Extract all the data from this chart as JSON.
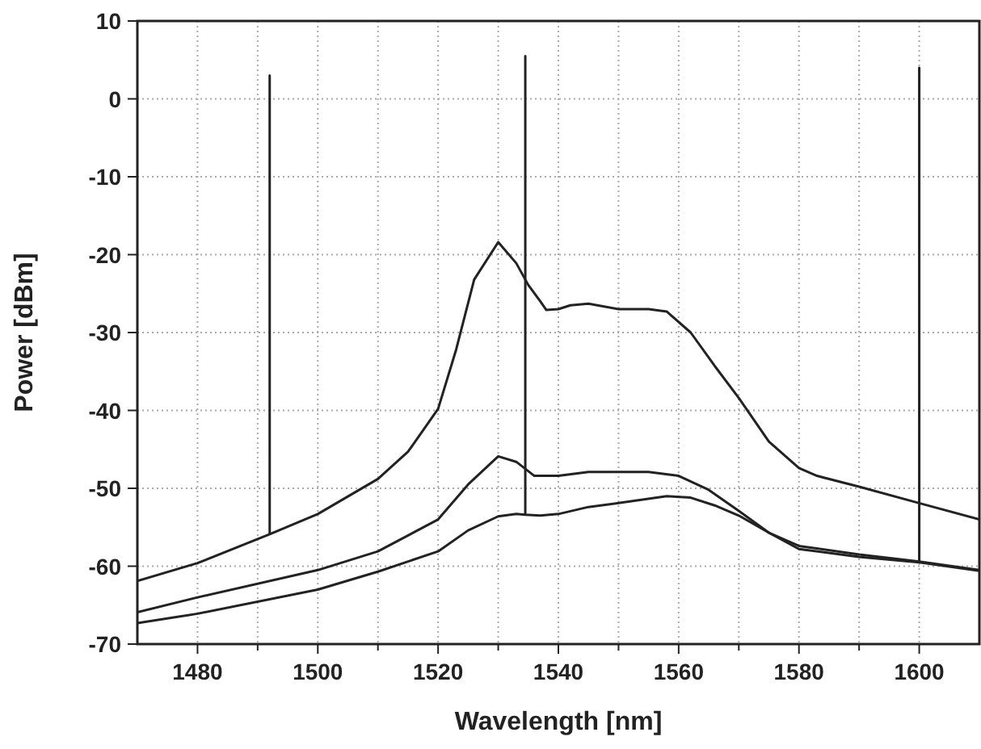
{
  "chart_data": {
    "type": "line",
    "xlabel": "Wavelength [nm]",
    "ylabel": "Power [dBm]",
    "xlim": [
      1470,
      1610
    ],
    "ylim": [
      -70,
      10
    ],
    "xticks": [
      1480,
      {
        "value": 1490,
        "label": null
      },
      1500,
      {
        "value": 1510,
        "label": null
      },
      1520,
      {
        "value": 1530,
        "label": null
      },
      1540,
      {
        "value": 1550,
        "label": null
      },
      1560,
      {
        "value": 1570,
        "label": null
      },
      1580,
      {
        "value": 1590,
        "label": null
      },
      1600
    ],
    "yticks": [
      -70,
      -60,
      -50,
      -40,
      -30,
      -20,
      -10,
      0,
      10
    ],
    "grid": true,
    "marker": "none",
    "line_style": "solid",
    "series": [
      {
        "color": "#222222",
        "x": [
          1470,
          1480,
          1492,
          1492,
          1492,
          1500,
          1510,
          1515,
          1520,
          1523,
          1526,
          1530,
          1533,
          1535,
          1537,
          1538,
          1540,
          1542,
          1545,
          1550,
          1555,
          1558,
          1562,
          1566,
          1570,
          1575,
          1580,
          1583,
          1590,
          1600,
          1610
        ],
        "values": [
          -61.9,
          -59.6,
          -55.9,
          3,
          -55.9,
          -53.3,
          -48.8,
          -45.3,
          -39.8,
          -32.2,
          -23.2,
          -18.4,
          -21.1,
          -23.9,
          -26,
          -27.1,
          -27,
          -26.5,
          -26.3,
          -27,
          -27,
          -27.3,
          -30,
          -34.3,
          -38.4,
          -44,
          -47.4,
          -48.4,
          -49.8,
          -51.9,
          -54
        ]
      },
      {
        "color": "#222222",
        "x": [
          1470,
          1480,
          1500,
          1510,
          1520,
          1525,
          1530,
          1533,
          1536,
          1540,
          1545,
          1555,
          1560,
          1565,
          1570,
          1575,
          1580,
          1590,
          1600,
          1600,
          1600,
          1610
        ],
        "values": [
          -65.9,
          -64,
          -60.5,
          -58.1,
          -54,
          -49.5,
          -45.9,
          -46.6,
          -48.4,
          -48.4,
          -47.9,
          -47.9,
          -48.4,
          -50.2,
          -52.9,
          -55.7,
          -57.4,
          -58.5,
          -59.4,
          4,
          -59.4,
          -60.5
        ]
      },
      {
        "color": "#222222",
        "x": [
          1470,
          1480,
          1500,
          1510,
          1520,
          1525,
          1530,
          1533,
          1534.5,
          1534.5,
          1534.5,
          1537,
          1540,
          1545,
          1550,
          1558,
          1562,
          1566,
          1570,
          1575,
          1580,
          1590,
          1600,
          1610
        ],
        "values": [
          -67.3,
          -66.1,
          -63,
          -60.7,
          -58.1,
          -55.4,
          -53.6,
          -53.3,
          -53.4,
          5.5,
          -53.4,
          -53.5,
          -53.3,
          -52.4,
          -51.9,
          -51,
          -51.2,
          -52.2,
          -53.5,
          -55.7,
          -57.8,
          -58.8,
          -59.5,
          -60.6
        ]
      }
    ]
  }
}
